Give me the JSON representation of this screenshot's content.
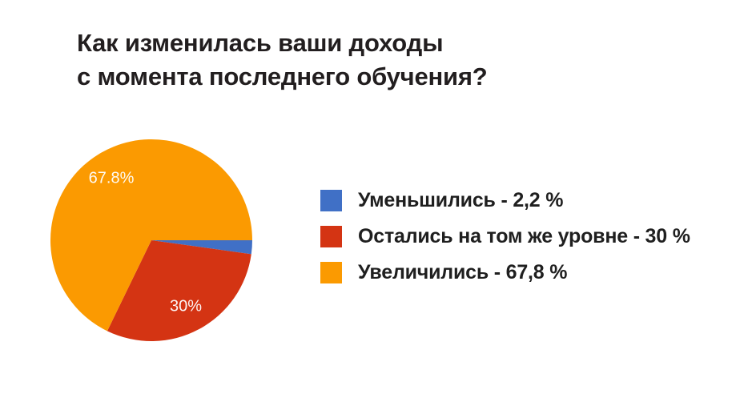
{
  "page": {
    "background_color": "#ffffff",
    "text_color": "#221e1f"
  },
  "title": {
    "line1": "Как изменилась ваши доходы",
    "line2": "с момента последнего обучения?"
  },
  "chart_data": {
    "type": "pie",
    "title": "Как изменилась ваши доходы с момента последнего обучения?",
    "start_angle_deg": 0,
    "direction": "clockwise",
    "slices": [
      {
        "name": "Уменьшились",
        "pct": 2.2,
        "color": "#4070C6",
        "display_label": ""
      },
      {
        "name": "Остались на том же уровне",
        "pct": 30,
        "color": "#D43413",
        "display_label": "30%"
      },
      {
        "name": "Увеличились",
        "pct": 67.8,
        "color": "#FB9A01",
        "display_label": "67.8%"
      }
    ],
    "legend_position": "right"
  },
  "legend": {
    "entries": [
      {
        "text": "Уменьшились - 2,2 %"
      },
      {
        "text": "Остались на том же уровне - 30 %"
      },
      {
        "text": "Увеличились - 67,8 %"
      }
    ]
  }
}
